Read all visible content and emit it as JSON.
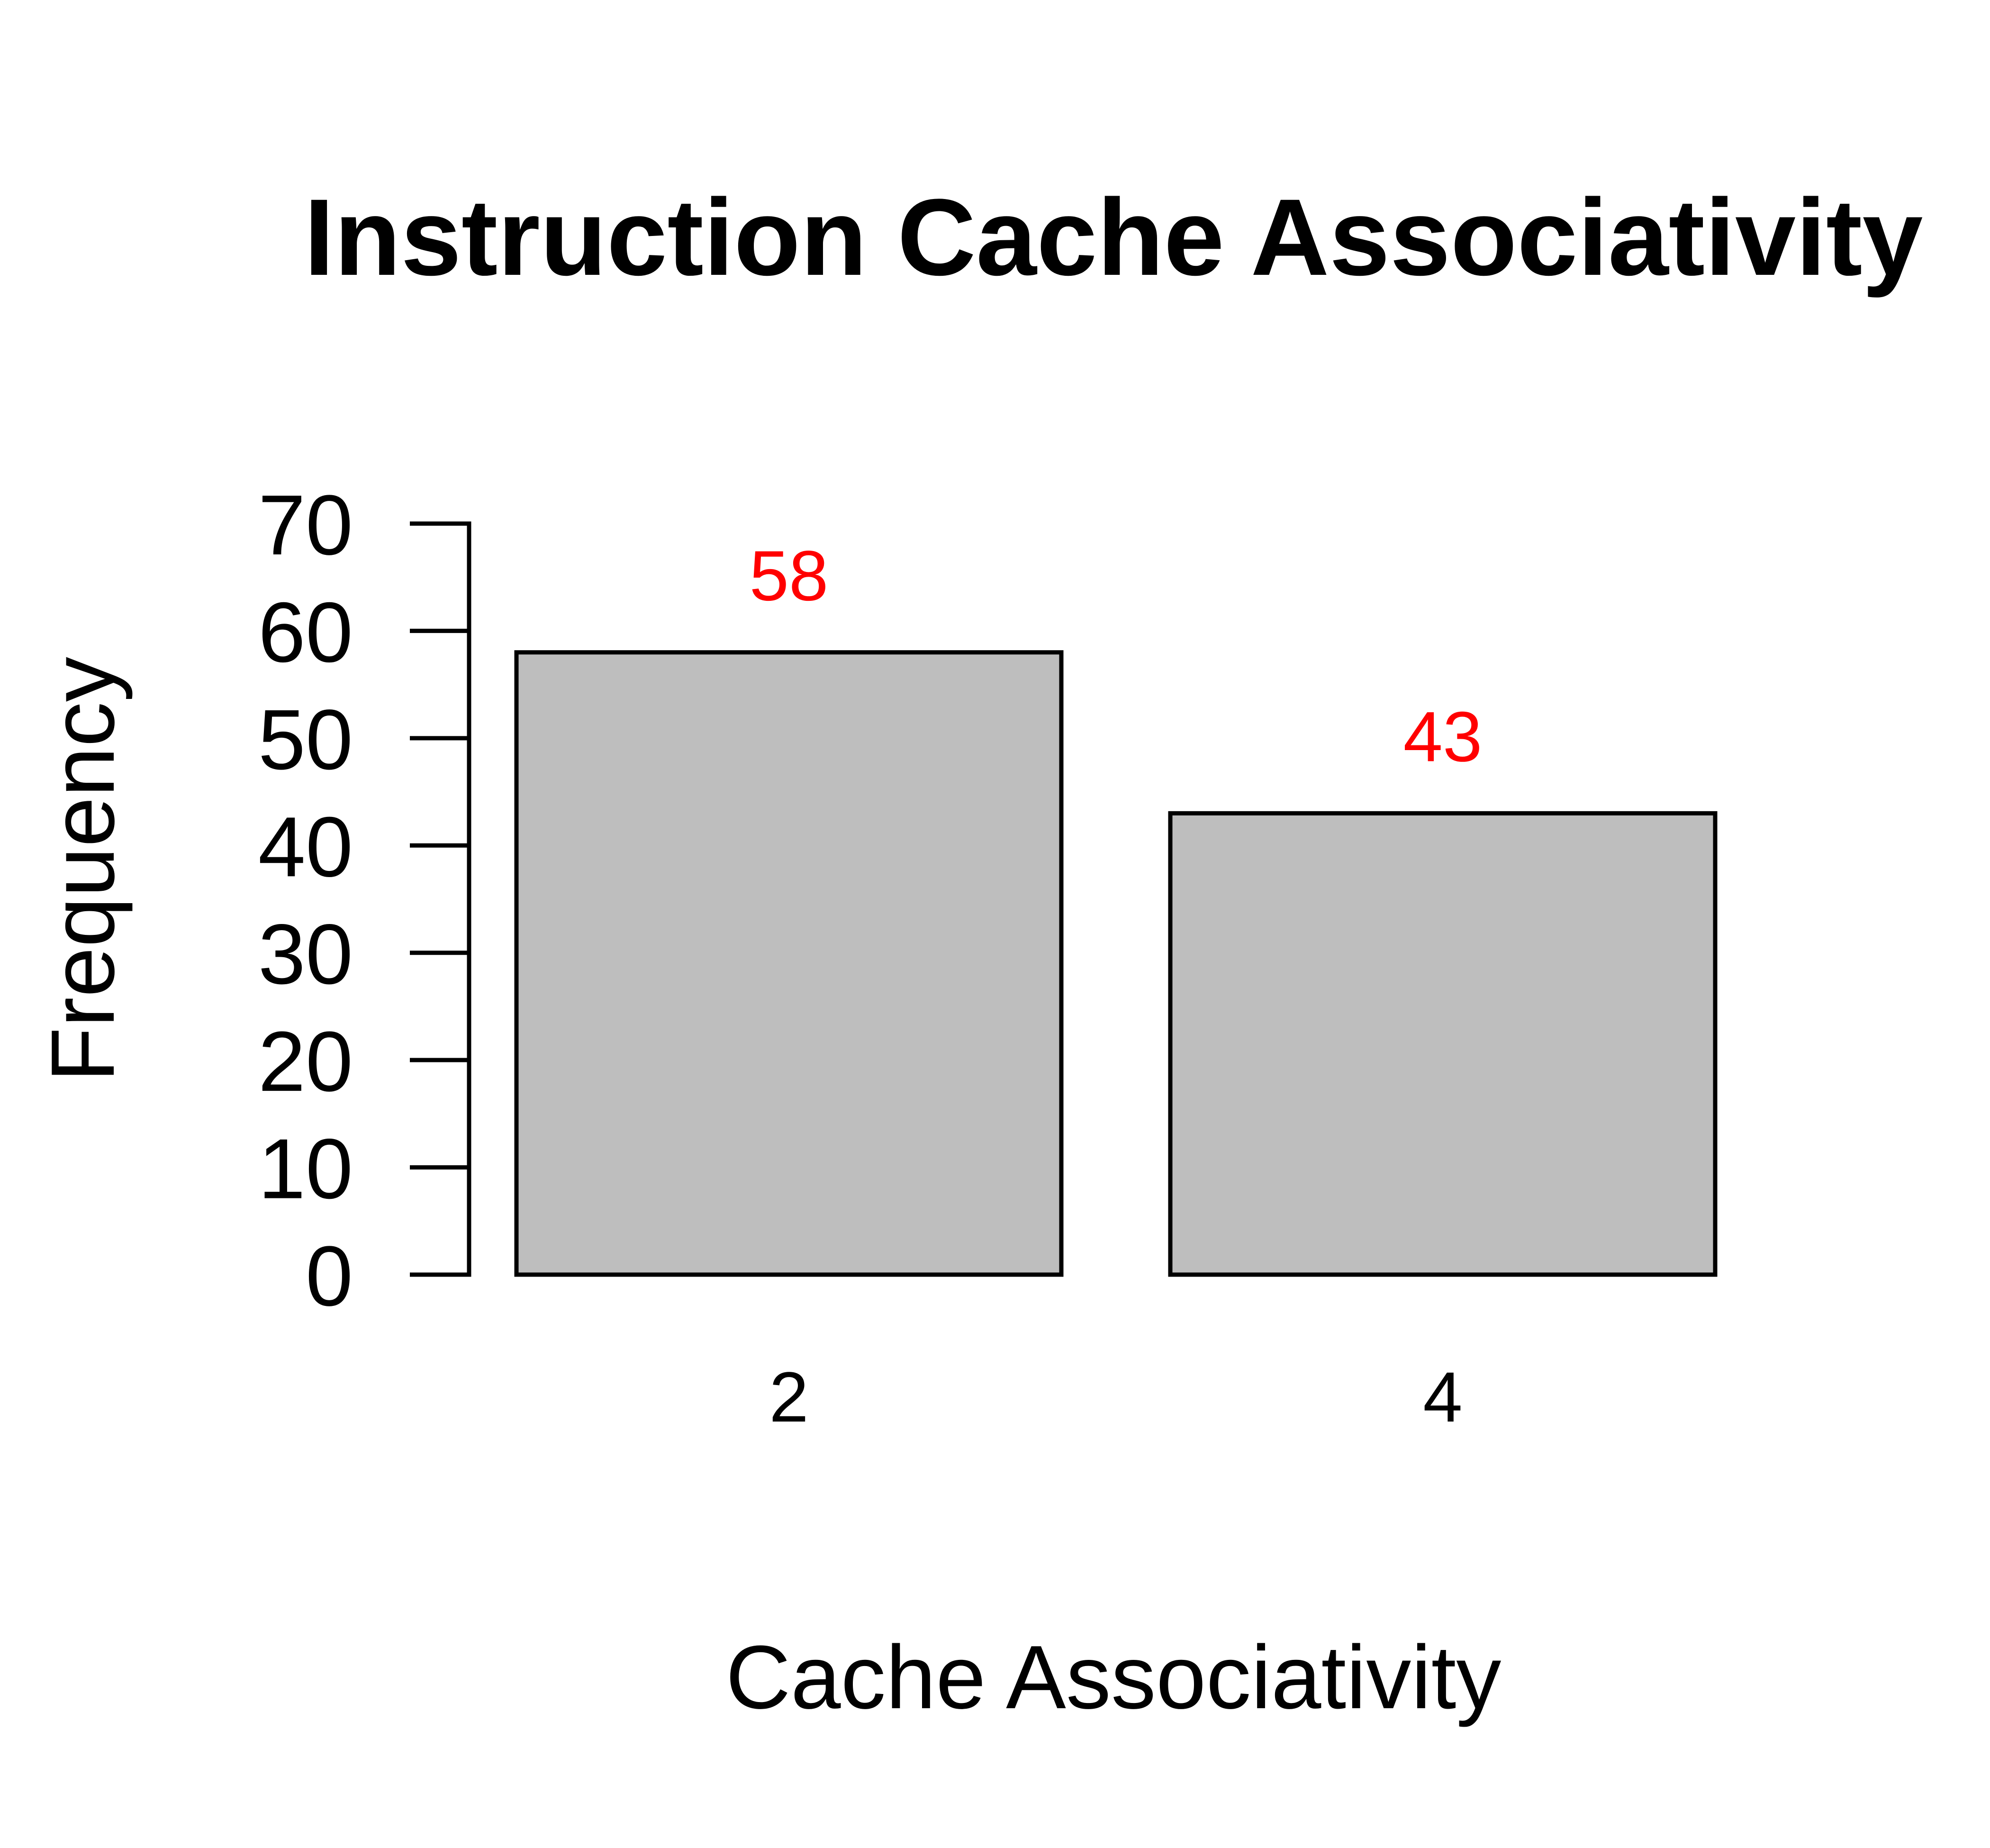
{
  "chart_data": {
    "type": "bar",
    "title": "Instruction Cache Associativity",
    "xlabel": "Cache Associativity",
    "ylabel": "Frequency",
    "categories": [
      "2",
      "4"
    ],
    "values": [
      58,
      43
    ],
    "data_labels": [
      "58",
      "43"
    ],
    "ylim": [
      0,
      70
    ],
    "yticks": [
      0,
      10,
      20,
      30,
      40,
      50,
      60,
      70
    ],
    "ytick_labels": [
      "0",
      "10",
      "20",
      "30",
      "40",
      "50",
      "60",
      "70"
    ],
    "grid": false,
    "legend": "none",
    "colors": {
      "bar_fill": "#bebebe",
      "bar_stroke": "#000000",
      "data_label": "#ff0000",
      "axis": "#000000"
    }
  }
}
